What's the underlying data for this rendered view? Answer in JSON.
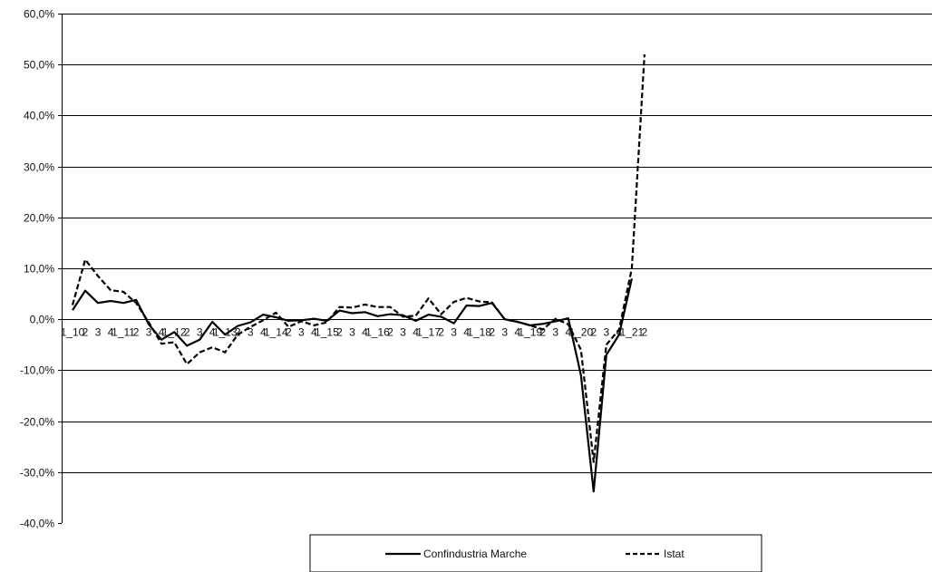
{
  "chart_data": {
    "type": "line",
    "y_tick_labels": [
      "60,0%",
      "50,0%",
      "40,0%",
      "30,0%",
      "20,0%",
      "10,0%",
      "0,0%",
      "-10,0%",
      "-20,0%",
      "-30,0%",
      "-40,0%"
    ],
    "ylim": [
      -40,
      60
    ],
    "y_ticks": [
      60,
      50,
      40,
      30,
      20,
      10,
      0,
      -10,
      -20,
      -30,
      -40
    ],
    "grid": true,
    "legend_position": "bottom",
    "x_tick_labels": [
      "1_10",
      "2",
      "3",
      "4",
      "1_11",
      "2",
      "3",
      "4",
      "1_12",
      "2",
      "3",
      "4",
      "1_13",
      "2",
      "3",
      "4",
      "1_14",
      "2",
      "3",
      "4",
      "1_15",
      "2",
      "3",
      "4",
      "1_16",
      "2",
      "3",
      "4",
      "1_17",
      "2",
      "3",
      "4",
      "1_18",
      "2",
      "3",
      "4",
      "1_19",
      "2",
      "3",
      "4",
      "1_20",
      "2",
      "3",
      "4",
      "1_21",
      "2"
    ],
    "series": [
      {
        "name": "Confindustria Marche",
        "style": "solid",
        "color": "#000000",
        "values": [
          1.8,
          5.6,
          3.2,
          3.6,
          3.2,
          3.8,
          -1.0,
          -4.0,
          -2.5,
          -5.2,
          -4.0,
          -0.5,
          -3.0,
          -1.3,
          -0.6,
          0.9,
          0.4,
          -0.3,
          -0.2,
          0.1,
          -0.3,
          1.7,
          1.2,
          1.4,
          0.6,
          1.0,
          0.8,
          -0.3,
          0.9,
          0.5,
          -0.8,
          2.7,
          2.6,
          3.2,
          0.0,
          -0.5,
          -1.2,
          -0.9,
          -0.4,
          0.2,
          -11.0,
          -33.8,
          -7.0,
          -3.0,
          8.0
        ]
      },
      {
        "name": "Istat",
        "style": "dashed",
        "color": "#000000",
        "values": [
          2.8,
          11.7,
          8.5,
          5.7,
          5.4,
          3.2,
          -0.6,
          -4.8,
          -4.5,
          -8.8,
          -6.5,
          -5.5,
          -6.5,
          -3.0,
          -1.5,
          -0.2,
          1.3,
          -1.5,
          -0.4,
          -1.2,
          -0.6,
          2.4,
          2.3,
          2.9,
          2.4,
          2.4,
          0.5,
          0.7,
          4.1,
          1.0,
          3.4,
          4.2,
          3.5,
          3.3,
          0.0,
          -0.5,
          -1.2,
          -2.0,
          0.1,
          -1.0,
          -6.0,
          -28.0,
          -5.0,
          -2.0,
          10.0,
          52.0
        ]
      }
    ]
  }
}
